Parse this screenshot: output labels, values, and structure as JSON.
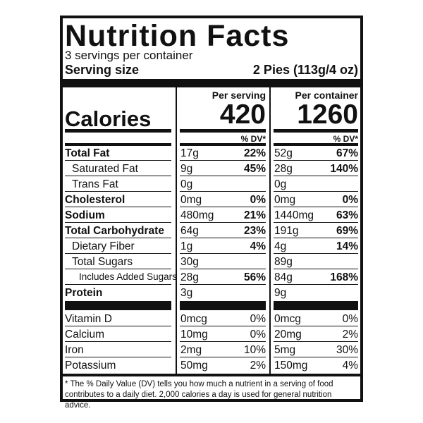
{
  "title": "Nutrition Facts",
  "servings": "3 servings per container",
  "serving_size": {
    "label": "Serving size",
    "value": "2 Pies (113g/4 oz)"
  },
  "columns": [
    "Per serving",
    "Per container"
  ],
  "calories": {
    "label": "Calories",
    "values": [
      "420",
      "1260"
    ]
  },
  "dv_header": [
    "% DV*",
    "% DV*"
  ],
  "nutrients": [
    {
      "name": "Total Fat",
      "style": "bold",
      "serving": [
        "17g",
        "22%"
      ],
      "container": [
        "52g",
        "67%"
      ]
    },
    {
      "name": "Saturated Fat",
      "style": "indent",
      "serving": [
        "9g",
        "45%"
      ],
      "container": [
        "28g",
        "140%"
      ]
    },
    {
      "name": "Trans Fat",
      "style": "indent",
      "serving": [
        "0g"
      ],
      "container": [
        "0g"
      ]
    },
    {
      "name": "Cholesterol",
      "style": "bold",
      "serving": [
        "0mg",
        "0%"
      ],
      "container": [
        "0mg",
        "0%"
      ]
    },
    {
      "name": "Sodium",
      "style": "bold",
      "serving": [
        "480mg",
        "21%"
      ],
      "container": [
        "1440mg",
        "63%"
      ]
    },
    {
      "name": "Total Carbohydrate",
      "style": "bold",
      "serving": [
        "64g",
        "23%"
      ],
      "container": [
        "191g",
        "69%"
      ]
    },
    {
      "name": "Dietary Fiber",
      "style": "indent",
      "serving": [
        "1g",
        "4%"
      ],
      "container": [
        "4g",
        "14%"
      ]
    },
    {
      "name": "Total Sugars",
      "style": "indent",
      "serving": [
        "30g"
      ],
      "container": [
        "89g"
      ]
    },
    {
      "name": "Includes Added Sugars",
      "style": "indent2",
      "serving": [
        "28g",
        "56%"
      ],
      "container": [
        "84g",
        "168%"
      ]
    },
    {
      "name": "Protein",
      "style": "bold",
      "serving": [
        "3g"
      ],
      "container": [
        "9g"
      ]
    }
  ],
  "micronutrients": [
    {
      "name": "Vitamin D",
      "serving": [
        "0mcg",
        "0%"
      ],
      "container": [
        "0mcg",
        "0%"
      ]
    },
    {
      "name": "Calcium",
      "serving": [
        "10mg",
        "0%"
      ],
      "container": [
        "20mg",
        "2%"
      ]
    },
    {
      "name": "Iron",
      "serving": [
        "2mg",
        "10%"
      ],
      "container": [
        "5mg",
        "30%"
      ]
    },
    {
      "name": "Potassium",
      "serving": [
        "50mg",
        "2%"
      ],
      "container": [
        "150mg",
        "4%"
      ]
    }
  ],
  "footnote": "* The % Daily Value (DV) tells you how much a nutrient in a serving of food contributes to a daily diet. 2,000 calories a day is used for general nutrition advice."
}
